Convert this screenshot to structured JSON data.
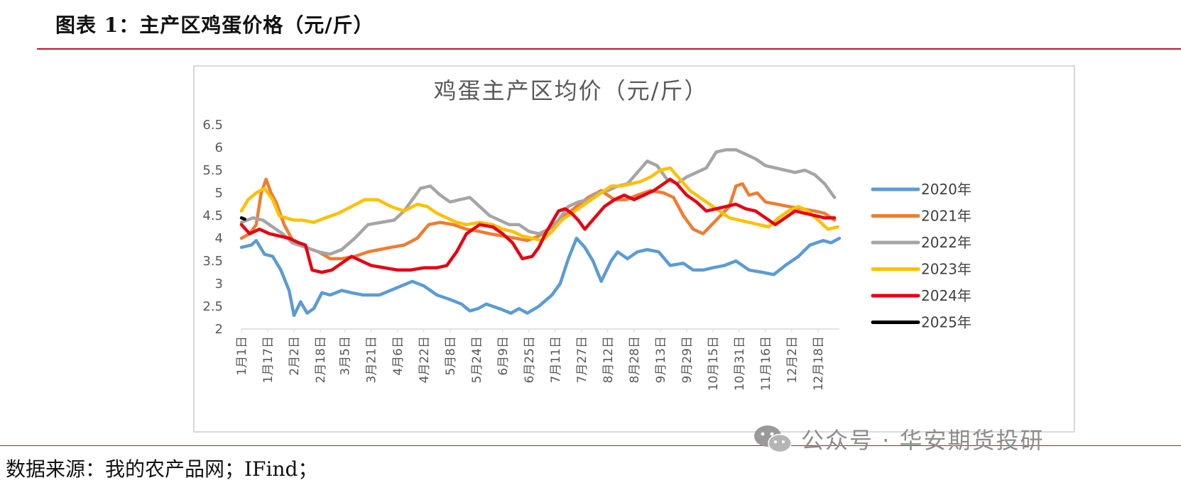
{
  "figure_title": "图表 1：主产区鸡蛋价格（元/斤）",
  "source": "数据来源：我的农产品网；IFind；",
  "watermark": "公众号 · 华安期货投研",
  "watermark_icon": "wechat-icon",
  "chart_data": {
    "type": "line",
    "title": "鸡蛋主产区均价（元/斤）",
    "xlabel": "",
    "ylabel": "",
    "ylim": [
      2,
      6.5
    ],
    "yticks": [
      "2",
      "2.5",
      "3",
      "3.5",
      "4",
      "4.5",
      "5",
      "5.5",
      "6",
      "6.5"
    ],
    "xlim": [
      1,
      365
    ],
    "x_tick_labels": [
      "1月1日",
      "1月17日",
      "2月2日",
      "2月18日",
      "3月5日",
      "3月21日",
      "4月6日",
      "4月22日",
      "5月8日",
      "5月24日",
      "6月9日",
      "6月25日",
      "7月11日",
      "7月27日",
      "8月12日",
      "8月28日",
      "9月13日",
      "9月29日",
      "10月15日",
      "10月31日",
      "11月16日",
      "12月2日",
      "12月18日"
    ],
    "x_tick_days": [
      1,
      17,
      33,
      49,
      64,
      80,
      96,
      112,
      128,
      144,
      160,
      176,
      192,
      208,
      224,
      240,
      256,
      272,
      288,
      304,
      320,
      336,
      352
    ],
    "grid": false,
    "legend": "right",
    "series": [
      {
        "name": "2020年",
        "color": "#5b9bd5",
        "x": [
          1,
          7,
          10,
          15,
          20,
          25,
          30,
          33,
          37,
          41,
          45,
          50,
          55,
          62,
          68,
          75,
          85,
          95,
          105,
          112,
          120,
          128,
          135,
          140,
          145,
          150,
          158,
          165,
          170,
          175,
          182,
          190,
          195,
          200,
          205,
          210,
          215,
          220,
          226,
          230,
          236,
          242,
          248,
          255,
          262,
          270,
          276,
          282,
          288,
          295,
          302,
          310,
          318,
          325,
          332,
          340,
          347,
          355,
          360,
          365
        ],
        "y": [
          3.8,
          3.85,
          3.95,
          3.65,
          3.6,
          3.3,
          2.85,
          2.3,
          2.6,
          2.35,
          2.45,
          2.8,
          2.75,
          2.85,
          2.8,
          2.75,
          2.75,
          2.9,
          3.05,
          2.95,
          2.75,
          2.65,
          2.55,
          2.4,
          2.45,
          2.55,
          2.45,
          2.35,
          2.45,
          2.35,
          2.5,
          2.75,
          3.0,
          3.55,
          4.0,
          3.8,
          3.5,
          3.05,
          3.5,
          3.7,
          3.55,
          3.7,
          3.75,
          3.7,
          3.4,
          3.45,
          3.3,
          3.3,
          3.35,
          3.4,
          3.5,
          3.3,
          3.25,
          3.2,
          3.4,
          3.6,
          3.85,
          3.95,
          3.9,
          4.0
        ]
      },
      {
        "name": "2021年",
        "color": "#ed7d31",
        "x": [
          1,
          6,
          10,
          13,
          16,
          19,
          22,
          27,
          33,
          40,
          48,
          55,
          62,
          70,
          78,
          85,
          92,
          100,
          108,
          115,
          122,
          130,
          138,
          146,
          152,
          160,
          168,
          175,
          182,
          190,
          198,
          205,
          212,
          220,
          228,
          235,
          242,
          250,
          258,
          264,
          270,
          276,
          282,
          290,
          298,
          302,
          306,
          310,
          315,
          320,
          327,
          334,
          342,
          350,
          356,
          362
        ],
        "y": [
          4.0,
          4.1,
          4.3,
          5.0,
          5.3,
          5.0,
          4.8,
          4.3,
          3.9,
          3.8,
          3.7,
          3.55,
          3.55,
          3.6,
          3.7,
          3.75,
          3.8,
          3.85,
          4.0,
          4.3,
          4.35,
          4.3,
          4.2,
          4.15,
          4.1,
          4.05,
          4.0,
          3.95,
          4.05,
          4.25,
          4.5,
          4.7,
          4.9,
          5.05,
          4.85,
          4.85,
          4.95,
          5.05,
          5.0,
          4.9,
          4.5,
          4.2,
          4.1,
          4.4,
          4.7,
          5.15,
          5.2,
          4.95,
          5.0,
          4.8,
          4.75,
          4.7,
          4.65,
          4.6,
          4.55,
          4.4
        ]
      },
      {
        "name": "2022年",
        "color": "#a5a5a5",
        "x": [
          1,
          8,
          14,
          20,
          26,
          32,
          40,
          48,
          55,
          62,
          70,
          78,
          86,
          94,
          100,
          106,
          110,
          116,
          122,
          128,
          134,
          140,
          146,
          152,
          158,
          164,
          170,
          176,
          182,
          188,
          194,
          200,
          206,
          212,
          218,
          224,
          230,
          236,
          242,
          248,
          254,
          260,
          266,
          272,
          278,
          284,
          290,
          296,
          302,
          308,
          314,
          320,
          326,
          332,
          338,
          344,
          350,
          356,
          362
        ],
        "y": [
          4.35,
          4.45,
          4.4,
          4.25,
          4.1,
          3.9,
          3.8,
          3.7,
          3.65,
          3.75,
          4.0,
          4.3,
          4.35,
          4.4,
          4.6,
          4.9,
          5.1,
          5.15,
          4.95,
          4.8,
          4.85,
          4.9,
          4.7,
          4.5,
          4.4,
          4.3,
          4.3,
          4.15,
          4.1,
          4.2,
          4.4,
          4.7,
          4.8,
          4.85,
          5.0,
          5.05,
          5.15,
          5.2,
          5.45,
          5.7,
          5.6,
          5.3,
          5.2,
          5.35,
          5.45,
          5.55,
          5.9,
          5.95,
          5.95,
          5.85,
          5.75,
          5.6,
          5.55,
          5.5,
          5.45,
          5.5,
          5.4,
          5.2,
          4.9
        ]
      },
      {
        "name": "2023年",
        "color": "#ffc000",
        "x": [
          1,
          5,
          10,
          15,
          20,
          24,
          28,
          33,
          38,
          45,
          52,
          60,
          68,
          76,
          84,
          92,
          100,
          108,
          114,
          120,
          126,
          132,
          138,
          146,
          154,
          160,
          166,
          172,
          178,
          184,
          190,
          196,
          202,
          208,
          214,
          220,
          226,
          232,
          238,
          244,
          250,
          256,
          262,
          268,
          274,
          280,
          286,
          292,
          298,
          304,
          310,
          316,
          322,
          328,
          334,
          340,
          346,
          352,
          358,
          364
        ],
        "y": [
          4.6,
          4.85,
          5.0,
          5.1,
          4.85,
          4.5,
          4.45,
          4.4,
          4.4,
          4.35,
          4.45,
          4.55,
          4.7,
          4.85,
          4.85,
          4.7,
          4.6,
          4.75,
          4.7,
          4.55,
          4.45,
          4.35,
          4.3,
          4.35,
          4.3,
          4.2,
          4.15,
          4.05,
          4.0,
          3.95,
          4.15,
          4.4,
          4.55,
          4.7,
          4.85,
          5.0,
          5.15,
          5.15,
          5.2,
          5.25,
          5.35,
          5.5,
          5.55,
          5.3,
          5.05,
          4.9,
          4.75,
          4.6,
          4.45,
          4.4,
          4.35,
          4.3,
          4.25,
          4.45,
          4.6,
          4.7,
          4.6,
          4.4,
          4.2,
          4.25
        ]
      },
      {
        "name": "2024年",
        "color": "#e60012",
        "x": [
          1,
          6,
          12,
          18,
          24,
          30,
          36,
          40,
          44,
          50,
          56,
          62,
          68,
          74,
          80,
          88,
          96,
          104,
          112,
          120,
          126,
          132,
          138,
          146,
          154,
          160,
          166,
          172,
          178,
          182,
          186,
          190,
          194,
          198,
          202,
          206,
          210,
          216,
          222,
          228,
          234,
          240,
          246,
          252,
          258,
          262,
          266,
          272,
          278,
          284,
          290,
          296,
          302,
          308,
          314,
          320,
          326,
          332,
          338,
          344,
          350,
          356,
          362
        ],
        "y": [
          4.3,
          4.1,
          4.2,
          4.1,
          4.05,
          4.0,
          3.9,
          3.85,
          3.3,
          3.25,
          3.3,
          3.45,
          3.6,
          3.5,
          3.4,
          3.35,
          3.3,
          3.3,
          3.35,
          3.35,
          3.4,
          3.7,
          4.1,
          4.3,
          4.25,
          4.1,
          3.9,
          3.55,
          3.6,
          3.8,
          4.1,
          4.35,
          4.6,
          4.65,
          4.55,
          4.4,
          4.2,
          4.45,
          4.7,
          4.85,
          4.95,
          4.85,
          4.95,
          5.05,
          5.2,
          5.3,
          5.2,
          4.95,
          4.8,
          4.6,
          4.65,
          4.7,
          4.75,
          4.65,
          4.6,
          4.45,
          4.3,
          4.45,
          4.6,
          4.55,
          4.5,
          4.45,
          4.45
        ]
      },
      {
        "name": "2025年",
        "color": "#000000",
        "x": [
          1,
          3
        ],
        "y": [
          4.45,
          4.42
        ]
      }
    ]
  }
}
